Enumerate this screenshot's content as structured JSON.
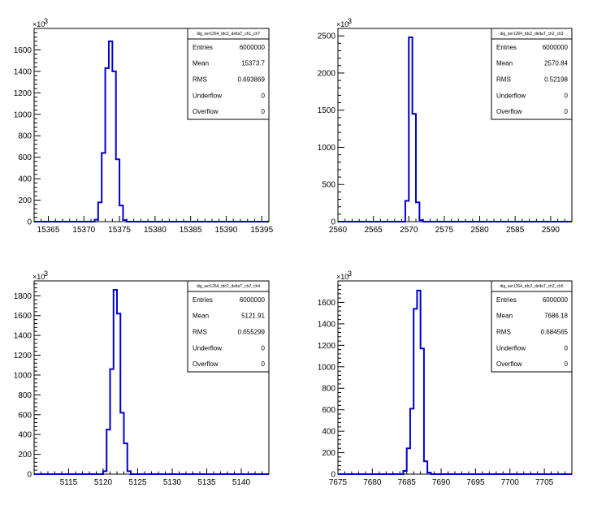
{
  "chart_data": [
    {
      "type": "histogram",
      "title": "dig_ser1264_tdc2_deltaT_ch1_ch7",
      "y_multiplier_label": "×10",
      "y_multiplier_exp": "3",
      "xlim": [
        15363,
        15396
      ],
      "ylim": [
        0,
        1800
      ],
      "x_ticks": [
        15365,
        15370,
        15375,
        15380,
        15385,
        15390,
        15395
      ],
      "y_ticks": [
        0,
        200,
        400,
        600,
        800,
        1000,
        1200,
        1400,
        1600
      ],
      "bins": [
        {
          "x0": 15371.5,
          "x1": 15372,
          "y": 18
        },
        {
          "x0": 15372,
          "x1": 15372.5,
          "y": 180
        },
        {
          "x0": 15372.5,
          "x1": 15373,
          "y": 640
        },
        {
          "x0": 15373,
          "x1": 15373.5,
          "y": 1430
        },
        {
          "x0": 15373.5,
          "x1": 15374,
          "y": 1680
        },
        {
          "x0": 15374,
          "x1": 15374.5,
          "y": 1400
        },
        {
          "x0": 15374.5,
          "x1": 15375,
          "y": 580
        },
        {
          "x0": 15375,
          "x1": 15375.5,
          "y": 150
        },
        {
          "x0": 15375.5,
          "x1": 15376,
          "y": 15
        }
      ],
      "stats": [
        {
          "label": "Entries",
          "value": "6000000"
        },
        {
          "label": "Mean",
          "value": "15373.7"
        },
        {
          "label": "RMS",
          "value": "0.693869"
        },
        {
          "label": "Underflow",
          "value": "0"
        },
        {
          "label": "Overflow",
          "value": "0"
        }
      ]
    },
    {
      "type": "histogram",
      "title": "dig_ser1264_tdc2_deltaT_ch2_ch3",
      "y_multiplier_label": "×10",
      "y_multiplier_exp": "3",
      "xlim": [
        2560,
        2593
      ],
      "ylim": [
        0,
        2600
      ],
      "x_ticks": [
        2560,
        2565,
        2570,
        2575,
        2580,
        2585,
        2590
      ],
      "y_ticks": [
        0,
        500,
        1000,
        1500,
        2000,
        2500
      ],
      "bins": [
        {
          "x0": 2569.5,
          "x1": 2570,
          "y": 280
        },
        {
          "x0": 2570,
          "x1": 2570.5,
          "y": 2480
        },
        {
          "x0": 2570.5,
          "x1": 2571,
          "y": 1450
        },
        {
          "x0": 2571,
          "x1": 2571.5,
          "y": 260
        },
        {
          "x0": 2571.5,
          "x1": 2572,
          "y": 20
        }
      ],
      "stats": [
        {
          "label": "Entries",
          "value": "6000000"
        },
        {
          "label": "Mean",
          "value": "2570.84"
        },
        {
          "label": "RMS",
          "value": "0.52198"
        },
        {
          "label": "Underflow",
          "value": "0"
        },
        {
          "label": "Overflow",
          "value": "0"
        }
      ]
    },
    {
      "type": "histogram",
      "title": "dig_ser1264_tdc2_deltaT_ch2_ch4",
      "y_multiplier_label": "×10",
      "y_multiplier_exp": "3",
      "xlim": [
        5110,
        5144
      ],
      "ylim": [
        0,
        1950
      ],
      "x_ticks": [
        5115,
        5120,
        5125,
        5130,
        5135,
        5140
      ],
      "y_ticks": [
        0,
        200,
        400,
        600,
        800,
        1000,
        1200,
        1400,
        1600,
        1800
      ],
      "bins": [
        {
          "x0": 5120,
          "x1": 5120.5,
          "y": 30
        },
        {
          "x0": 5120.5,
          "x1": 5121,
          "y": 450
        },
        {
          "x0": 5121,
          "x1": 5121.5,
          "y": 1060
        },
        {
          "x0": 5121.5,
          "x1": 5122,
          "y": 1860
        },
        {
          "x0": 5122,
          "x1": 5122.5,
          "y": 1620
        },
        {
          "x0": 5122.5,
          "x1": 5123,
          "y": 620
        },
        {
          "x0": 5123,
          "x1": 5123.5,
          "y": 310
        },
        {
          "x0": 5123.5,
          "x1": 5124,
          "y": 30
        }
      ],
      "stats": [
        {
          "label": "Entries",
          "value": "6000000"
        },
        {
          "label": "Mean",
          "value": "5121.91"
        },
        {
          "label": "RMS",
          "value": "0.655299"
        },
        {
          "label": "Underflow",
          "value": "0"
        },
        {
          "label": "Overflow",
          "value": "0"
        }
      ]
    },
    {
      "type": "histogram",
      "title": "dig_ser1264_tdc2_deltaT_ch2_ch5",
      "y_multiplier_label": "×10",
      "y_multiplier_exp": "3",
      "xlim": [
        7675,
        7709
      ],
      "ylim": [
        0,
        1800
      ],
      "x_ticks": [
        7675,
        7680,
        7685,
        7690,
        7695,
        7700,
        7705
      ],
      "y_ticks": [
        0,
        200,
        400,
        600,
        800,
        1000,
        1200,
        1400,
        1600
      ],
      "bins": [
        {
          "x0": 7684.5,
          "x1": 7685,
          "y": 30
        },
        {
          "x0": 7685,
          "x1": 7685.5,
          "y": 240
        },
        {
          "x0": 7685.5,
          "x1": 7686,
          "y": 610
        },
        {
          "x0": 7686,
          "x1": 7686.5,
          "y": 1540
        },
        {
          "x0": 7686.5,
          "x1": 7687,
          "y": 1710
        },
        {
          "x0": 7687,
          "x1": 7687.5,
          "y": 1170
        },
        {
          "x0": 7687.5,
          "x1": 7688,
          "y": 120
        },
        {
          "x0": 7688,
          "x1": 7688.5,
          "y": 15
        }
      ],
      "stats": [
        {
          "label": "Entries",
          "value": "6000000"
        },
        {
          "label": "Mean",
          "value": "7686.18"
        },
        {
          "label": "RMS",
          "value": "0.684565"
        },
        {
          "label": "Underflow",
          "value": "0"
        },
        {
          "label": "Overflow",
          "value": "0"
        }
      ]
    }
  ],
  "style": {
    "line_color": "#0000cc",
    "axis_color": "#000000",
    "background": "#ffffff"
  }
}
